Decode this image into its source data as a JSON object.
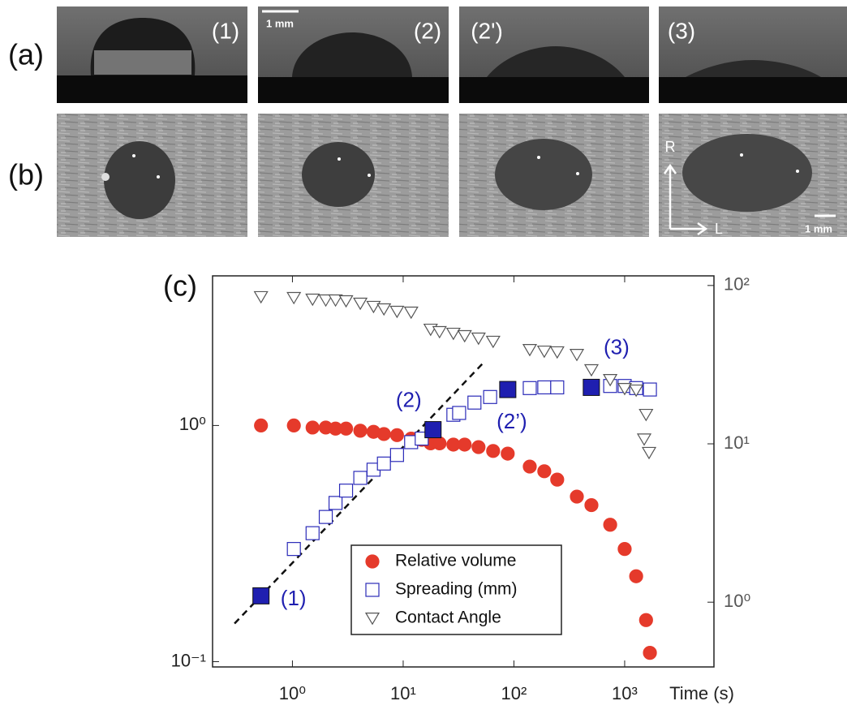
{
  "figure": {
    "panel_labels": [
      "(a)",
      "(b)",
      "(c)"
    ],
    "image_labels": [
      "(1)",
      "(2)",
      "(2')",
      "(3)"
    ],
    "scale_bar": "1 mm",
    "direction_labels": [
      "R",
      "L"
    ]
  },
  "chart_data": {
    "type": "scatter",
    "xlabel": "Time (s)",
    "xscale": "log",
    "yscale": "log",
    "y2scale": "log",
    "xlim": [
      0.19,
      6400
    ],
    "ylim": [
      0.095,
      4.3
    ],
    "y2lim": [
      0.39,
      115
    ],
    "xticks": [
      {
        "value": 1,
        "label": "10⁰"
      },
      {
        "value": 10,
        "label": "10¹"
      },
      {
        "value": 100,
        "label": "10²"
      },
      {
        "value": 1000,
        "label": "10³"
      }
    ],
    "yticks": [
      {
        "value": 0.1,
        "label": "10⁻¹"
      },
      {
        "value": 1,
        "label": "10⁰"
      }
    ],
    "y2ticks": [
      {
        "value": 1,
        "label": "10⁰"
      },
      {
        "value": 10,
        "label": "10¹"
      },
      {
        "value": 100,
        "label": "10²"
      }
    ],
    "series": [
      {
        "name": "Relative volume",
        "color": "#e53a2b",
        "marker": "circle",
        "filled": true,
        "x": [
          0.52,
          1.03,
          1.52,
          2.0,
          2.45,
          3.05,
          4.1,
          5.4,
          6.7,
          8.8,
          11.8,
          14.7,
          17.7,
          21.3,
          28.4,
          35.9,
          47.9,
          64.9,
          87.9,
          139,
          188,
          246,
          370,
          501,
          740,
          1000,
          1270,
          1560,
          1690
        ],
        "values": [
          1.0,
          1.0,
          0.98,
          0.98,
          0.97,
          0.97,
          0.95,
          0.94,
          0.92,
          0.91,
          0.88,
          0.87,
          0.84,
          0.84,
          0.83,
          0.83,
          0.81,
          0.78,
          0.76,
          0.67,
          0.64,
          0.59,
          0.5,
          0.46,
          0.38,
          0.3,
          0.23,
          0.15,
          0.109
        ]
      },
      {
        "name": "Spreading (mm)",
        "color": "#2b2bb8",
        "marker": "square",
        "filled": false,
        "x": [
          1.03,
          1.52,
          2.0,
          2.45,
          3.05,
          4.1,
          5.4,
          6.7,
          8.8,
          11.8,
          14.7,
          28.4,
          32,
          44,
          61,
          139,
          188,
          246,
          740,
          1000,
          1270,
          1690
        ],
        "values": [
          0.3,
          0.35,
          0.41,
          0.47,
          0.53,
          0.6,
          0.65,
          0.69,
          0.75,
          0.85,
          0.88,
          1.11,
          1.13,
          1.25,
          1.32,
          1.44,
          1.45,
          1.45,
          1.47,
          1.47,
          1.44,
          1.42
        ]
      },
      {
        "name": "Contact Angle",
        "color": "#555555",
        "marker": "triangle-down",
        "filled": false,
        "axis": "y2",
        "x": [
          0.52,
          1.03,
          1.52,
          2.0,
          2.45,
          3.05,
          4.1,
          5.4,
          6.7,
          8.8,
          11.8,
          17.7,
          21.3,
          28.4,
          35.9,
          47.9,
          64.9,
          139,
          188,
          246,
          370,
          501,
          740,
          1000,
          1270,
          1560,
          1500,
          1660
        ],
        "values": [
          84.8,
          83.7,
          81.8,
          80.8,
          80.8,
          79.9,
          77.1,
          73.6,
          71.0,
          68.5,
          67.7,
          52.8,
          51.0,
          49.8,
          48.1,
          46.4,
          44.3,
          39.3,
          38.4,
          38.0,
          36.6,
          29.3,
          25.4,
          22.3,
          21.8,
          15.3,
          10.7,
          8.8
        ]
      }
    ],
    "fit_line": {
      "x": [
        0.3,
        54
      ],
      "values": [
        0.145,
        1.86
      ],
      "color": "#111111",
      "dashed": true
    },
    "annotations": [
      {
        "text": "(1)",
        "x": 0.52,
        "y": 0.19
      },
      {
        "text": "(2)",
        "x": 18.6,
        "y": 0.96
      },
      {
        "text": "(2’)",
        "x": 88,
        "y": 1.42
      },
      {
        "text": "(3)",
        "x": 500,
        "y": 1.45
      }
    ],
    "annotation_color": "#1f1fb0",
    "legend": "lower center"
  }
}
